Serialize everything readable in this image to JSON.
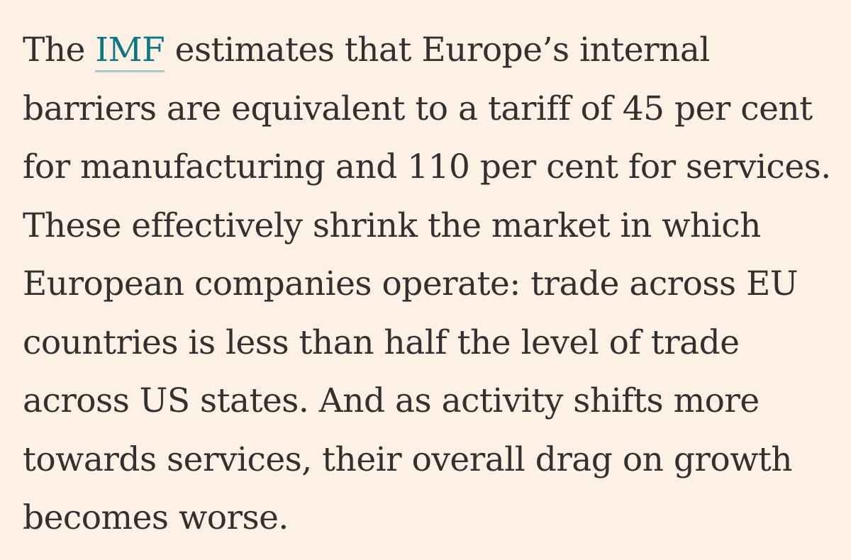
{
  "paragraph": {
    "before_link": "The ",
    "link_text": "IMF",
    "after_link": " estimates that Europe’s internal",
    "lines": [
      "barriers are equivalent to a tariff of 45 per cent",
      "for manufacturing and 110 per cent for services.",
      "These effectively shrink the market in which",
      "European companies operate: trade across EU",
      "countries is less than half the level of trade",
      "across US states. And as activity shifts more",
      "towards services, their overall drag on growth",
      "becomes worse."
    ]
  },
  "colors": {
    "background": "#fdf1e6",
    "text": "#33302e",
    "link": "#0d7680"
  }
}
